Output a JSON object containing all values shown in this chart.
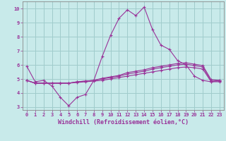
{
  "title": "",
  "xlabel": "Windchill (Refroidissement éolien,°C)",
  "ylabel": "",
  "background_color": "#c8eaea",
  "grid_color": "#a0cccc",
  "line_color": "#993399",
  "xlim": [
    -0.5,
    23.5
  ],
  "ylim": [
    2.8,
    10.5
  ],
  "xticks": [
    0,
    1,
    2,
    3,
    4,
    5,
    6,
    7,
    8,
    9,
    10,
    11,
    12,
    13,
    14,
    15,
    16,
    17,
    18,
    19,
    20,
    21,
    22,
    23
  ],
  "yticks": [
    3,
    4,
    5,
    6,
    7,
    8,
    9,
    10
  ],
  "line1_x": [
    0,
    1,
    2,
    3,
    4,
    5,
    6,
    7,
    8,
    9,
    10,
    11,
    12,
    13,
    14,
    15,
    16,
    17,
    18,
    19,
    20,
    21,
    22,
    23
  ],
  "line1_y": [
    5.9,
    4.8,
    4.9,
    4.5,
    3.7,
    3.1,
    3.7,
    3.9,
    4.9,
    6.6,
    8.1,
    9.3,
    9.9,
    9.5,
    10.1,
    8.5,
    7.4,
    7.1,
    6.3,
    6.0,
    5.2,
    4.9,
    4.8,
    4.9
  ],
  "line2_x": [
    0,
    1,
    2,
    3,
    4,
    5,
    6,
    7,
    8,
    9,
    10,
    11,
    12,
    13,
    14,
    15,
    16,
    17,
    18,
    19,
    20,
    21,
    22,
    23
  ],
  "line2_y": [
    4.9,
    4.7,
    4.7,
    4.7,
    4.7,
    4.7,
    4.75,
    4.8,
    4.85,
    4.9,
    5.0,
    5.1,
    5.2,
    5.3,
    5.4,
    5.5,
    5.6,
    5.7,
    5.8,
    5.85,
    5.8,
    5.7,
    4.8,
    4.8
  ],
  "line3_x": [
    0,
    1,
    2,
    3,
    4,
    5,
    6,
    7,
    8,
    9,
    10,
    11,
    12,
    13,
    14,
    15,
    16,
    17,
    18,
    19,
    20,
    21,
    22,
    23
  ],
  "line3_y": [
    4.9,
    4.7,
    4.7,
    4.7,
    4.7,
    4.7,
    4.8,
    4.85,
    4.9,
    5.0,
    5.1,
    5.2,
    5.35,
    5.45,
    5.55,
    5.7,
    5.8,
    5.9,
    6.0,
    6.05,
    5.95,
    5.85,
    4.85,
    4.85
  ],
  "line4_x": [
    0,
    1,
    2,
    3,
    4,
    5,
    6,
    7,
    8,
    9,
    10,
    11,
    12,
    13,
    14,
    15,
    16,
    17,
    18,
    19,
    20,
    21,
    22,
    23
  ],
  "line4_y": [
    4.9,
    4.7,
    4.7,
    4.7,
    4.7,
    4.7,
    4.8,
    4.85,
    4.9,
    5.05,
    5.15,
    5.25,
    5.45,
    5.55,
    5.65,
    5.8,
    5.9,
    6.0,
    6.1,
    6.15,
    6.05,
    5.95,
    4.95,
    4.9
  ]
}
